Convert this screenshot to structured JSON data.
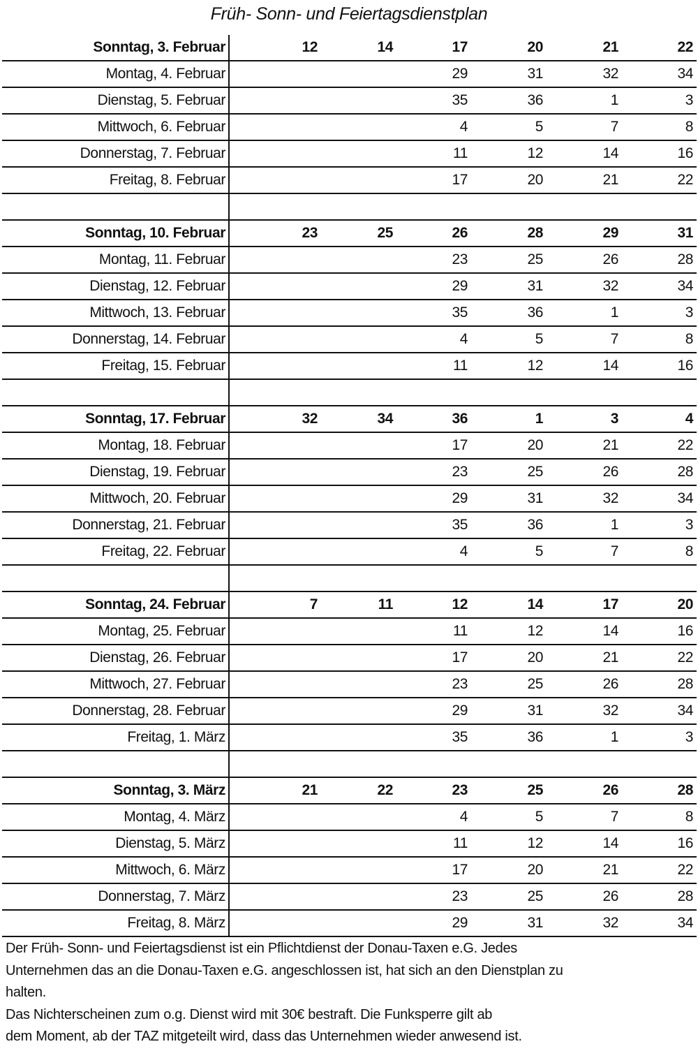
{
  "title": "Früh- Sonn- und Feiertagsdienstplan",
  "blocks": [
    {
      "sunday": {
        "label": "Sonntag, 3. Februar",
        "values": [
          "12",
          "14",
          "17",
          "20",
          "21",
          "22"
        ]
      },
      "days": [
        {
          "label": "Montag, 4. Februar",
          "values": [
            "29",
            "31",
            "32",
            "34"
          ]
        },
        {
          "label": "Dienstag, 5. Februar",
          "values": [
            "35",
            "36",
            "1",
            "3"
          ]
        },
        {
          "label": "Mittwoch, 6. Februar",
          "values": [
            "4",
            "5",
            "7",
            "8"
          ]
        },
        {
          "label": "Donnerstag, 7. Februar",
          "values": [
            "11",
            "12",
            "14",
            "16"
          ]
        },
        {
          "label": "Freitag, 8. Februar",
          "values": [
            "17",
            "20",
            "21",
            "22"
          ]
        }
      ]
    },
    {
      "sunday": {
        "label": "Sonntag, 10. Februar",
        "values": [
          "23",
          "25",
          "26",
          "28",
          "29",
          "31"
        ]
      },
      "days": [
        {
          "label": "Montag, 11. Februar",
          "values": [
            "23",
            "25",
            "26",
            "28"
          ]
        },
        {
          "label": "Dienstag, 12. Februar",
          "values": [
            "29",
            "31",
            "32",
            "34"
          ]
        },
        {
          "label": "Mittwoch, 13. Februar",
          "values": [
            "35",
            "36",
            "1",
            "3"
          ]
        },
        {
          "label": "Donnerstag, 14. Februar",
          "values": [
            "4",
            "5",
            "7",
            "8"
          ]
        },
        {
          "label": "Freitag, 15. Februar",
          "values": [
            "11",
            "12",
            "14",
            "16"
          ]
        }
      ]
    },
    {
      "sunday": {
        "label": "Sonntag, 17. Februar",
        "values": [
          "32",
          "34",
          "36",
          "1",
          "3",
          "4"
        ]
      },
      "days": [
        {
          "label": "Montag, 18. Februar",
          "values": [
            "17",
            "20",
            "21",
            "22"
          ]
        },
        {
          "label": "Dienstag, 19. Februar",
          "values": [
            "23",
            "25",
            "26",
            "28"
          ]
        },
        {
          "label": "Mittwoch, 20. Februar",
          "values": [
            "29",
            "31",
            "32",
            "34"
          ]
        },
        {
          "label": "Donnerstag, 21. Februar",
          "values": [
            "35",
            "36",
            "1",
            "3"
          ]
        },
        {
          "label": "Freitag, 22. Februar",
          "values": [
            "4",
            "5",
            "7",
            "8"
          ]
        }
      ]
    },
    {
      "sunday": {
        "label": "Sonntag, 24. Februar",
        "values": [
          "7",
          "11",
          "12",
          "14",
          "17",
          "20"
        ]
      },
      "days": [
        {
          "label": "Montag, 25. Februar",
          "values": [
            "11",
            "12",
            "14",
            "16"
          ]
        },
        {
          "label": "Dienstag, 26. Februar",
          "values": [
            "17",
            "20",
            "21",
            "22"
          ]
        },
        {
          "label": "Mittwoch, 27. Februar",
          "values": [
            "23",
            "25",
            "26",
            "28"
          ]
        },
        {
          "label": "Donnerstag, 28. Februar",
          "values": [
            "29",
            "31",
            "32",
            "34"
          ]
        },
        {
          "label": "Freitag, 1. März",
          "values": [
            "35",
            "36",
            "1",
            "3"
          ]
        }
      ]
    },
    {
      "sunday": {
        "label": "Sonntag, 3. März",
        "values": [
          "21",
          "22",
          "23",
          "25",
          "26",
          "28"
        ]
      },
      "days": [
        {
          "label": "Montag, 4. März",
          "values": [
            "4",
            "5",
            "7",
            "8"
          ]
        },
        {
          "label": "Dienstag, 5. März",
          "values": [
            "11",
            "12",
            "14",
            "16"
          ]
        },
        {
          "label": "Mittwoch, 6. März",
          "values": [
            "17",
            "20",
            "21",
            "22"
          ]
        },
        {
          "label": "Donnerstag, 7. März",
          "values": [
            "23",
            "25",
            "26",
            "28"
          ]
        },
        {
          "label": "Freitag, 8. März",
          "values": [
            "29",
            "31",
            "32",
            "34"
          ]
        }
      ]
    }
  ],
  "footer_lines": [
    "Der Früh- Sonn- und Feiertagsdienst ist ein Pflichtdienst der Donau-Taxen e.G. Jedes",
    "Unternehmen das an die Donau-Taxen e.G. angeschlossen ist, hat sich an den Dienstplan zu",
    "halten.",
    "Das Nichterscheinen zum o.g. Dienst wird mit 30€ bestraft. Die Funksperre gilt ab",
    "dem Moment, ab der TAZ mitgeteilt wird, dass das Unternehmen wieder anwesend ist."
  ]
}
